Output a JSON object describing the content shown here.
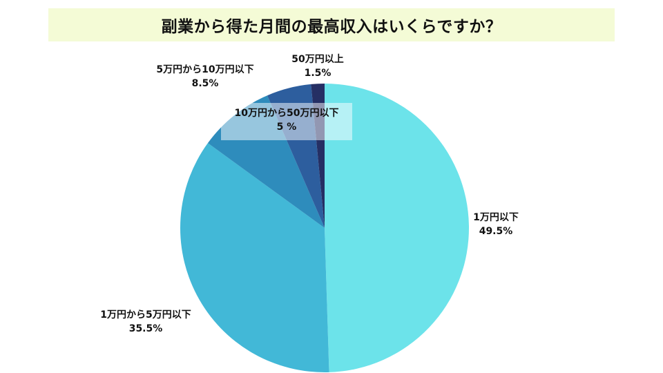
{
  "chart_data": {
    "type": "pie",
    "title": "副業から得た月間の最高収入はいくらですか？",
    "slices": [
      {
        "label": "1万円以下",
        "value_label": "49.5%",
        "value": 49.5,
        "color": "#6ce3ea"
      },
      {
        "label": "1万円から5万円以下",
        "value_label": "35.5%",
        "value": 35.5,
        "color": "#42b8d7"
      },
      {
        "label": "5万円から10万円以下",
        "value_label": "8.5%",
        "value": 8.5,
        "color": "#2e8cbc"
      },
      {
        "label": "10万円から50万円以下",
        "value_label": "5 %",
        "value": 5,
        "color": "#2d5e9e"
      },
      {
        "label": "50万円以上",
        "value_label": "1.5%",
        "value": 1.5,
        "color": "#252f64"
      }
    ],
    "start": "12 o'clock",
    "direction": "clockwise",
    "legend": "none"
  }
}
